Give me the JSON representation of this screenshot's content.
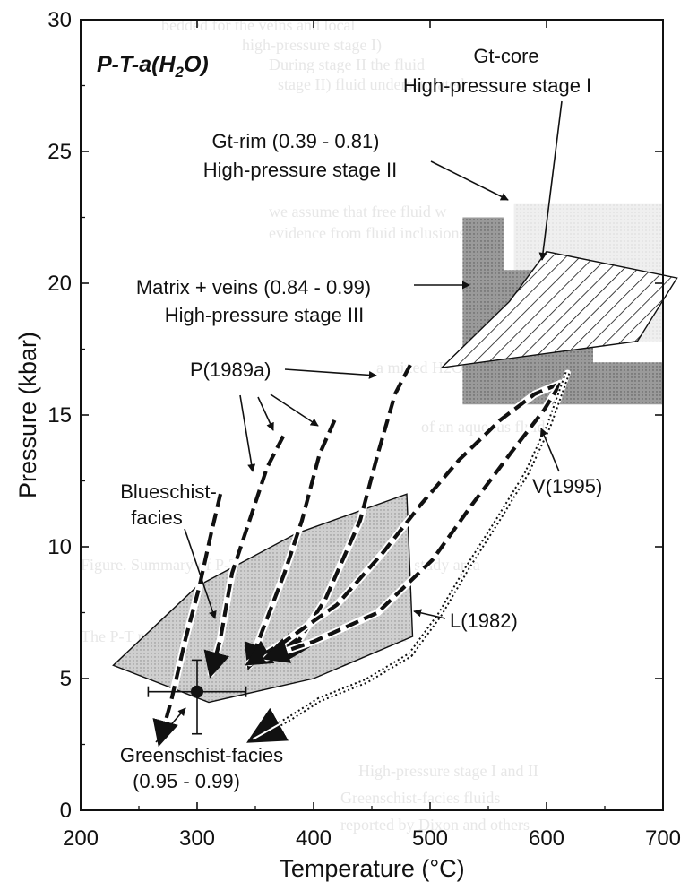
{
  "chart_data": {
    "type": "scatter",
    "title": "P-T-a(H2O)",
    "xlabel": "Temperature (°C)",
    "ylabel": "Pressure (kbar)",
    "xlim": [
      200,
      700
    ],
    "ylim": [
      0,
      30
    ],
    "x_ticks": [
      "200",
      "300",
      "400",
      "500",
      "600",
      "700"
    ],
    "y_ticks": [
      "0",
      "5",
      "10",
      "15",
      "20",
      "25",
      "30"
    ],
    "grid": false,
    "colors": {
      "axis": "#111111",
      "fill_light": "#e2e2e2",
      "fill_dark": "#8c8c8c",
      "fill_blueschist": "#c8c8c8",
      "fill_gtcore": "#eeeeee"
    },
    "fields": [
      {
        "name": "gt-core-field",
        "polygon": [
          [
            572,
            23
          ],
          [
            700,
            23
          ],
          [
            700,
            17.8
          ],
          [
            572,
            17.8
          ]
        ]
      },
      {
        "name": "matrix-upper-field",
        "polygon": [
          [
            528,
            22.5
          ],
          [
            563,
            22.5
          ],
          [
            563,
            20.3
          ],
          [
            528,
            20.3
          ]
        ]
      },
      {
        "name": "gt-rim-field",
        "polygon": [
          [
            528,
            20.5
          ],
          [
            640,
            20.5
          ],
          [
            640,
            17
          ],
          [
            700,
            17
          ],
          [
            700,
            15.4
          ],
          [
            528,
            15.4
          ]
        ]
      },
      {
        "name": "blueschist-field",
        "polygon": [
          [
            228,
            5.5
          ],
          [
            300,
            8.5
          ],
          [
            385,
            10.5
          ],
          [
            480,
            12
          ],
          [
            485,
            6.6
          ],
          [
            400,
            5
          ],
          [
            310,
            4.1
          ]
        ]
      },
      {
        "name": "stage-three-hatched-field",
        "polygon": [
          [
            568,
            19.3
          ],
          [
            600,
            21.2
          ],
          [
            712,
            20.2
          ],
          [
            678,
            17.8
          ],
          [
            510,
            16.8
          ]
        ]
      }
    ],
    "data_points": [
      {
        "name": "greenschist-facies-point",
        "x": 300,
        "y": 4.5,
        "xerr": 42,
        "yerr_low": 1.6,
        "yerr_high": 1.2
      }
    ],
    "paths": [
      {
        "label": "P(1989a)",
        "style": "dashed",
        "points": [
          [
            483,
            16.9
          ],
          [
            470,
            15.8
          ],
          [
            455,
            13.5
          ],
          [
            440,
            11
          ],
          [
            410,
            8
          ],
          [
            378,
            5.8
          ]
        ]
      },
      {
        "label": "P(1989a)",
        "style": "dashed",
        "points": [
          [
            418,
            14.8
          ],
          [
            405,
            13.5
          ],
          [
            390,
            11
          ],
          [
            375,
            9
          ],
          [
            355,
            6.7
          ],
          [
            345,
            5.5
          ]
        ]
      },
      {
        "label": "P(1989a)",
        "style": "dashed",
        "points": [
          [
            374,
            14.2
          ],
          [
            360,
            13
          ],
          [
            345,
            11
          ],
          [
            330,
            9
          ],
          [
            320,
            6.5
          ],
          [
            312,
            5.2
          ]
        ]
      },
      {
        "label": "P(1989a)",
        "style": "dashed",
        "points": [
          [
            320,
            12
          ],
          [
            312,
            10.5
          ],
          [
            302,
            8.5
          ],
          [
            290,
            6.5
          ],
          [
            278,
            4.2
          ],
          [
            268,
            2.6
          ]
        ]
      },
      {
        "label": "V(1995)",
        "style": "dashed",
        "points": [
          [
            612,
            16.2
          ],
          [
            590,
            15.8
          ],
          [
            560,
            14.8
          ],
          [
            525,
            13.3
          ],
          [
            492,
            11.6
          ],
          [
            460,
            9.8
          ],
          [
            420,
            7.8
          ],
          [
            375,
            6.4
          ],
          [
            345,
            5.6
          ]
        ]
      },
      {
        "label": "V(1995)",
        "style": "dashed",
        "points": [
          [
            612,
            16.2
          ],
          [
            598,
            15.2
          ],
          [
            570,
            13.6
          ],
          [
            536,
            11.6
          ],
          [
            502,
            9.5
          ],
          [
            455,
            7.5
          ],
          [
            400,
            6.4
          ],
          [
            360,
            5.8
          ]
        ]
      },
      {
        "label": "L(1982)",
        "style": "dotted",
        "points": [
          [
            618,
            16.6
          ],
          [
            602,
            14.6
          ],
          [
            583,
            12.8
          ],
          [
            558,
            11
          ],
          [
            532,
            9.2
          ],
          [
            508,
            7.4
          ],
          [
            483,
            5.9
          ],
          [
            445,
            4.9
          ],
          [
            405,
            4.2
          ],
          [
            380,
            3.5
          ],
          [
            348,
            2.7
          ]
        ]
      }
    ],
    "annotations": [
      {
        "id": "title",
        "text": "P-T-a(H2O)"
      },
      {
        "id": "gtcore1",
        "text": "Gt-core"
      },
      {
        "id": "gtcore2",
        "text": "High-pressure stage I"
      },
      {
        "id": "gtrim1",
        "text": "Gt-rim (0.39 - 0.81)"
      },
      {
        "id": "gtrim2",
        "text": "High-pressure stage II"
      },
      {
        "id": "matrix1",
        "text": "Matrix + veins (0.84 - 0.99)"
      },
      {
        "id": "matrix2",
        "text": "High-pressure stage III"
      },
      {
        "id": "p1989",
        "text": "P(1989a)"
      },
      {
        "id": "blue1",
        "text": "Blueschist-"
      },
      {
        "id": "blue2",
        "text": "facies"
      },
      {
        "id": "v1995",
        "text": "V(1995)"
      },
      {
        "id": "l1982",
        "text": "L(1982)"
      },
      {
        "id": "green1",
        "text": "Greenschist-facies"
      },
      {
        "id": "green2",
        "text": "(0.95 - 0.99)"
      }
    ]
  }
}
